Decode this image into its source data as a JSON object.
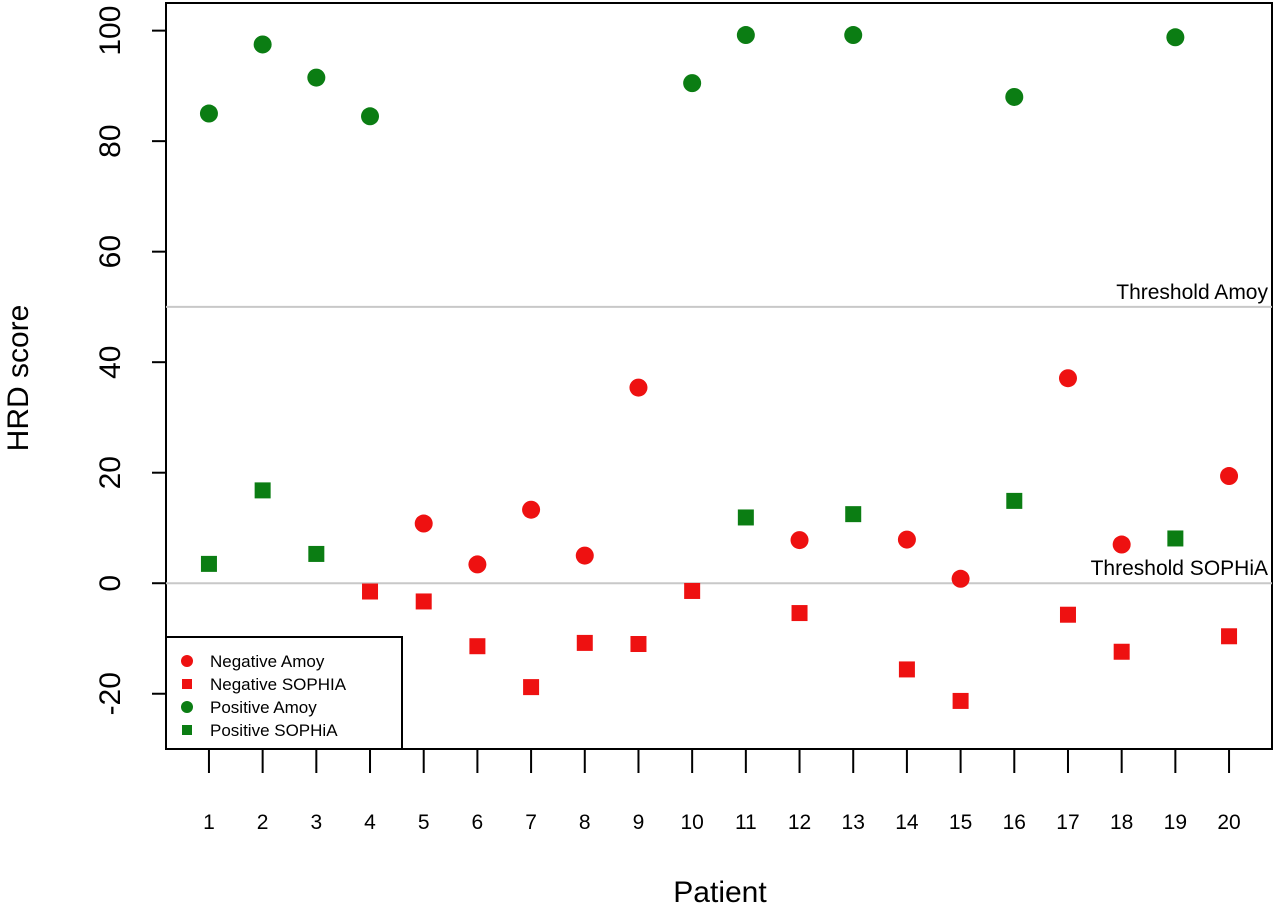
{
  "chart_data": {
    "type": "scatter",
    "title": "",
    "xlabel": "Patient",
    "ylabel": "HRD score",
    "x": [
      1,
      2,
      3,
      4,
      5,
      6,
      7,
      8,
      9,
      10,
      11,
      12,
      13,
      14,
      15,
      16,
      17,
      18,
      19,
      20
    ],
    "xticks": [
      "1",
      "2",
      "3",
      "4",
      "5",
      "6",
      "7",
      "8",
      "9",
      "10",
      "11",
      "12",
      "13",
      "14",
      "15",
      "16",
      "17",
      "18",
      "19",
      "20"
    ],
    "yticks": [
      -20,
      0,
      20,
      40,
      60,
      80,
      100
    ],
    "ytick_labels": [
      "-20",
      "0",
      "20",
      "40",
      "60",
      "80",
      "100"
    ],
    "xlim": [
      0.2,
      20.8
    ],
    "ylim": [
      -30,
      105
    ],
    "grid": false,
    "amoy": [
      85,
      97.5,
      91.5,
      84.5,
      10.8,
      3.4,
      13.3,
      5.0,
      35.4,
      90.5,
      99.2,
      7.8,
      99.2,
      7.9,
      0.8,
      88.0,
      37.1,
      7.0,
      98.8,
      19.4
    ],
    "sophia": [
      3.5,
      16.8,
      5.3,
      -1.5,
      -3.3,
      -11.4,
      -18.8,
      -10.8,
      -11.0,
      -1.4,
      11.9,
      -5.4,
      12.5,
      -15.6,
      -21.3,
      14.9,
      -5.7,
      -12.4,
      8.1,
      -9.6
    ],
    "amoy_positive": [
      true,
      true,
      true,
      true,
      false,
      false,
      false,
      false,
      false,
      true,
      true,
      false,
      true,
      false,
      false,
      true,
      false,
      false,
      true,
      false
    ],
    "sophia_positive": [
      true,
      true,
      true,
      false,
      false,
      false,
      false,
      false,
      false,
      false,
      true,
      false,
      true,
      false,
      false,
      true,
      false,
      false,
      true,
      false
    ],
    "thresholds": [
      {
        "label": "Threshold Amoy",
        "y": 50
      },
      {
        "label": "Threshold SOPHiA",
        "y": 0
      }
    ],
    "legend": {
      "position": "bottom-left",
      "entries": [
        {
          "label": "Negative Amoy",
          "shape": "circle",
          "color": "#ee1111"
        },
        {
          "label": "Negative SOPHIA",
          "shape": "square",
          "color": "#ee1111"
        },
        {
          "label": "Positive Amoy",
          "shape": "circle",
          "color": "#0b7d13"
        },
        {
          "label": "Positive SOPHiA",
          "shape": "square",
          "color": "#0b7d13"
        }
      ]
    },
    "colors": {
      "negative": "#ee1111",
      "positive": "#0b7d13",
      "threshold": "#c8c8c8"
    }
  }
}
